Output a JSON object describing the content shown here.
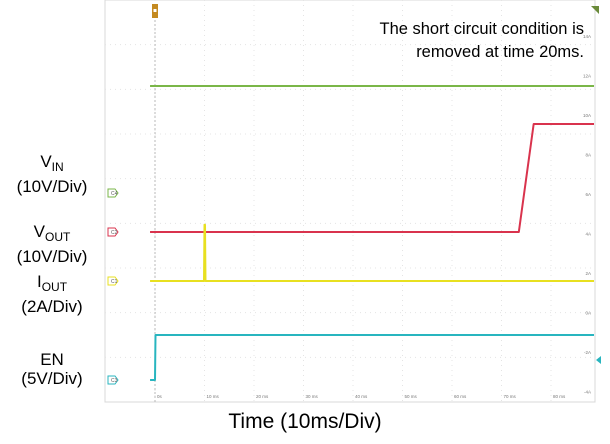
{
  "chart_data": {
    "type": "line",
    "title": "",
    "xlabel": "Time (10ms/Div)",
    "ylabel": "",
    "xlim": [
      -1,
      90
    ],
    "x_ticks": [
      "0s",
      "10 ms",
      "20 ms",
      "30 ms",
      "40 ms",
      "50 ms",
      "60 ms",
      "70 ms",
      "80 ms"
    ],
    "right_axis_ticks": [
      "14A",
      "12A",
      "10A",
      "8A",
      "6A",
      "4A",
      "2A",
      "0A",
      "-2A",
      "-4A"
    ],
    "grid": true,
    "annotation": [
      "The short circuit condition is",
      "removed at time 20ms."
    ],
    "series": [
      {
        "name": "VIN",
        "tag": "C4",
        "name_main": "V",
        "name_sub": "IN",
        "scale": "(10V/Div)",
        "color": "#7ab648",
        "points": [
          [
            -1,
            0
          ],
          [
            90,
            0
          ]
        ]
      },
      {
        "name": "VOUT",
        "tag": "C2",
        "name_main": "V",
        "name_sub": "OUT",
        "scale": "(10V/Div)",
        "color": "#d9334d",
        "points": [
          [
            -1,
            0
          ],
          [
            73.5,
            0
          ],
          [
            76.5,
            2.4
          ],
          [
            90,
            2.4
          ]
        ]
      },
      {
        "name": "IOUT",
        "tag": "C1",
        "name_main": "I",
        "name_sub": "OUT",
        "scale": "(2A/Div)",
        "color": "#e8e020",
        "points": [
          [
            -1,
            0
          ],
          [
            9.9,
            0
          ],
          [
            10.0,
            1.25
          ],
          [
            10.1,
            1.25
          ],
          [
            10.2,
            0
          ],
          [
            90,
            0
          ]
        ]
      },
      {
        "name": "EN",
        "tag": "C3",
        "name_main": "EN",
        "name_sub": "",
        "scale": "(5V/Div)",
        "color": "#28b5bf",
        "points": [
          [
            -1,
            0
          ],
          [
            0,
            0
          ],
          [
            0.1,
            1.0
          ],
          [
            90,
            1.0
          ]
        ]
      }
    ]
  }
}
